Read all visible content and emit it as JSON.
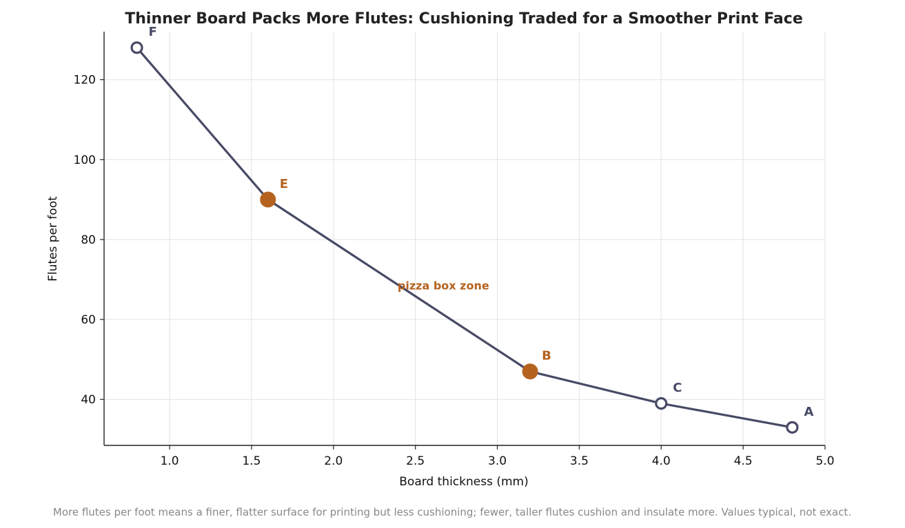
{
  "chart_data": {
    "type": "line",
    "title": "Thinner Board Packs More Flutes: Cushioning Traded for a Smoother Print Face",
    "xlabel": "Board thickness (mm)",
    "ylabel": "Flutes per foot",
    "xlim": [
      0.6,
      5.0
    ],
    "ylim": [
      28.5,
      132
    ],
    "xticks": [
      1.0,
      1.5,
      2.0,
      2.5,
      3.0,
      3.5,
      4.0,
      4.5,
      5.0
    ],
    "xtick_labels": [
      "1.0",
      "1.5",
      "2.0",
      "2.5",
      "3.0",
      "3.5",
      "4.0",
      "4.5",
      "5.0"
    ],
    "yticks": [
      40,
      60,
      80,
      100,
      120
    ],
    "ytick_labels": [
      "40",
      "60",
      "80",
      "100",
      "120"
    ],
    "grid": true,
    "points": [
      {
        "label": "F",
        "x": 0.8,
        "y": 128,
        "highlight": false
      },
      {
        "label": "E",
        "x": 1.6,
        "y": 90,
        "highlight": true
      },
      {
        "label": "B",
        "x": 3.2,
        "y": 47,
        "highlight": true
      },
      {
        "label": "C",
        "x": 4.0,
        "y": 39,
        "highlight": false
      },
      {
        "label": "A",
        "x": 4.8,
        "y": 33,
        "highlight": false
      }
    ],
    "annotation": {
      "text": "pizza box zone",
      "x": 2.4,
      "y": 68.5
    },
    "colors": {
      "line": "#474a65",
      "highlight": "#b5621e",
      "grid": "#e6e6e6",
      "axis": "#222222"
    },
    "footnote": "More flutes per foot means a finer, flatter surface for printing but less cushioning; fewer, taller flutes cushion and insulate more. Values typical, not exact."
  }
}
